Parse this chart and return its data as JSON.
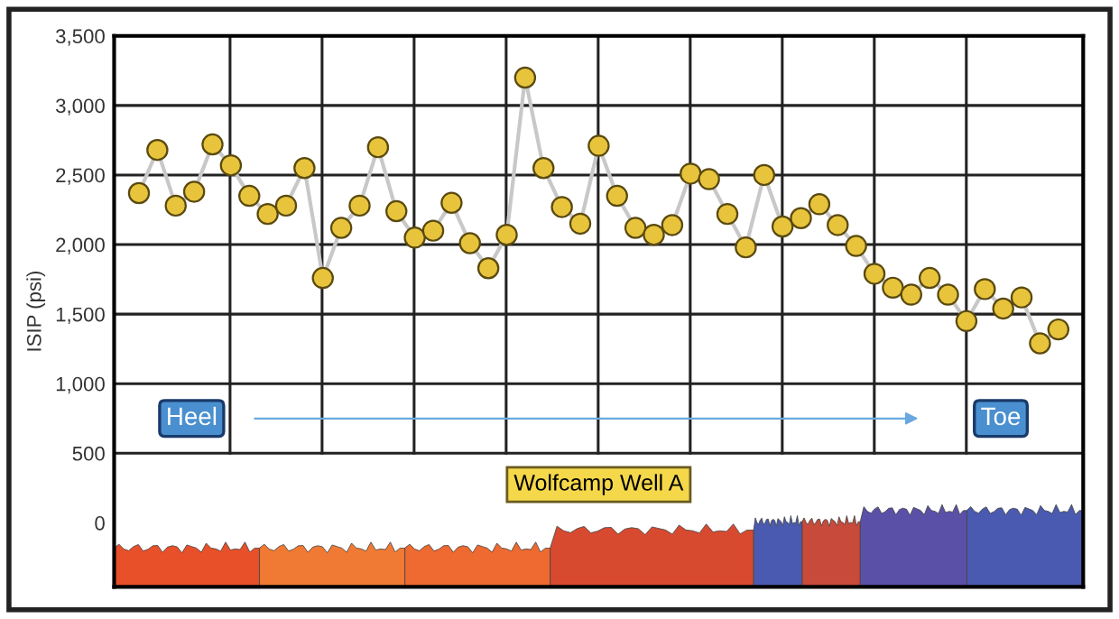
{
  "chart_data": {
    "type": "line",
    "ylabel": "ISIP (psi)",
    "categories": [
      null,
      null,
      null,
      null,
      null,
      null,
      null,
      null,
      null,
      null,
      null,
      null,
      null,
      null,
      null,
      null,
      null,
      null,
      null,
      null,
      null,
      null,
      null,
      null,
      null,
      null,
      null,
      null,
      null,
      null,
      null,
      null,
      null,
      null,
      null,
      null,
      null,
      null,
      null,
      null,
      null,
      null,
      null,
      null,
      null,
      null,
      null,
      null,
      null,
      null,
      null
    ],
    "series": [
      {
        "color": "#e8c43c",
        "values": [
          2370,
          2680,
          2280,
          2380,
          2720,
          2570,
          2350,
          2220,
          2280,
          2550,
          1760,
          2120,
          2280,
          2700,
          2240,
          2050,
          2100,
          2300,
          2010,
          1830,
          2070,
          3200,
          2550,
          2270,
          2150,
          2710,
          2350,
          2120,
          2070,
          2140,
          2510,
          2470,
          2220,
          1980,
          2500,
          2130,
          2190,
          2290,
          2140,
          1990,
          1790,
          1690,
          1640,
          1760,
          1640,
          1450,
          1680,
          1540,
          1620,
          1290,
          1390
        ]
      }
    ],
    "ylim": [
      -460,
      3500
    ],
    "yticks": [
      0,
      500,
      {
        "value": 1000,
        "label": "1,000"
      },
      {
        "value": 1500,
        "label": "1,500"
      },
      {
        "value": 2000,
        "label": "2,000"
      },
      {
        "value": 2500,
        "label": "2,500"
      },
      {
        "value": 3000,
        "label": "3,000"
      },
      {
        "value": 3500,
        "label": "3,500"
      }
    ],
    "marker": "circle",
    "grid": true,
    "tick_labels": "y",
    "annotations": [
      "Heel",
      "Toe",
      "Wolfcamp Well A"
    ]
  }
}
